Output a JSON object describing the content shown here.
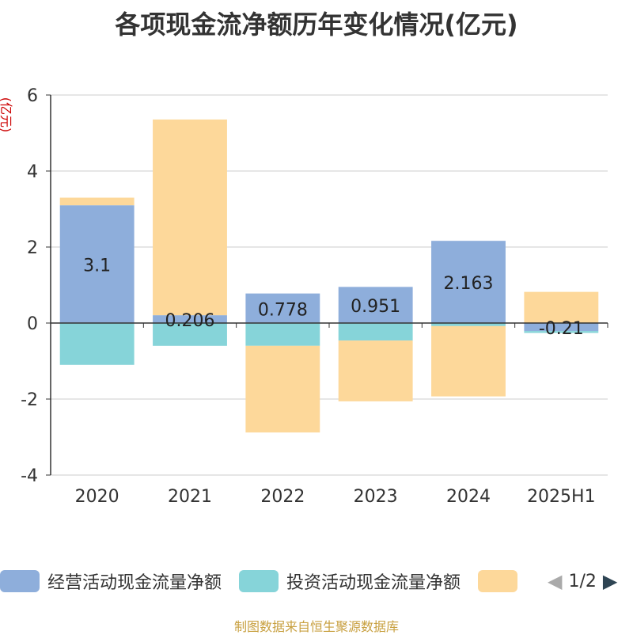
{
  "title": "各项现金流净额历年变化情况(亿元)",
  "footer": {
    "text": "制图数据来自恒生聚源数据库",
    "color": "#c8a040"
  },
  "legend_pager": {
    "text": "1/2",
    "prev_color": "#aaaaaa",
    "next_color": "#2f4554"
  },
  "chart_data": {
    "type": "bar",
    "stacked": true,
    "title": "各项现金流净额历年变化情况(亿元)",
    "ylabel": "(亿元)",
    "ylabel_color": "#cc0000",
    "ylim": [
      -4,
      6
    ],
    "yticks": [
      -4,
      -2,
      0,
      2,
      4,
      6
    ],
    "grid": true,
    "legend_position": "bottom",
    "categories": [
      "2020",
      "2021",
      "2022",
      "2023",
      "2024",
      "2025H1"
    ],
    "series": [
      {
        "name": "经营活动现金流量净额",
        "color": "#8eaedb",
        "values": [
          3.1,
          0.206,
          0.778,
          0.951,
          2.163,
          -0.21
        ],
        "labels": [
          "3.1",
          "0.206",
          "0.778",
          "0.951",
          "2.163",
          "-0.21"
        ]
      },
      {
        "name": "投资活动现金流量净额",
        "color": "#86d4d9",
        "values": [
          -1.1,
          -0.6,
          -0.6,
          -0.46,
          -0.08,
          -0.05
        ]
      },
      {
        "name": "",
        "color": "#fdd89a",
        "values": [
          0.2,
          5.15,
          -2.28,
          -1.6,
          -1.85,
          0.82
        ]
      }
    ]
  }
}
